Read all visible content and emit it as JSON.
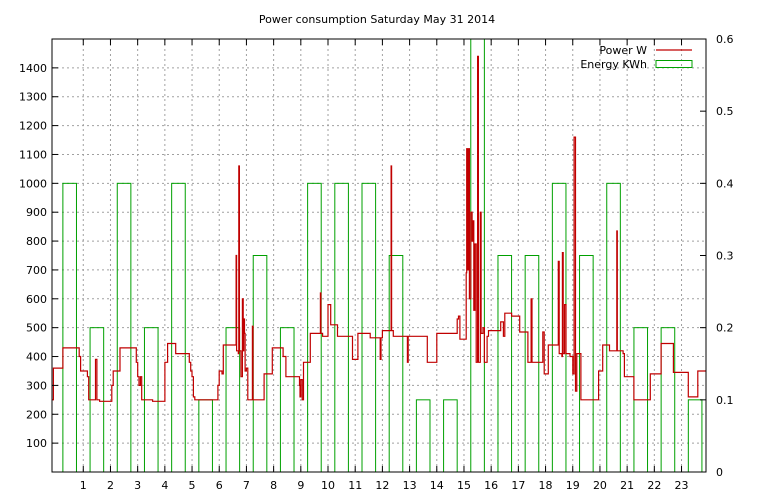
{
  "chart_data": {
    "type": "line",
    "title": "Power consumption Saturday May 31 2014",
    "x": {
      "range": [
        -0.15,
        23.9
      ],
      "ticks": [
        1,
        2,
        3,
        4,
        5,
        6,
        7,
        8,
        9,
        10,
        11,
        12,
        13,
        14,
        15,
        16,
        17,
        18,
        19,
        20,
        21,
        22,
        23
      ],
      "grid": true
    },
    "y_left": {
      "range": [
        0,
        1500
      ],
      "ticks": [
        100,
        200,
        300,
        400,
        500,
        600,
        700,
        800,
        900,
        1000,
        1100,
        1200,
        1300,
        1400
      ],
      "grid": true
    },
    "y_right": {
      "range": [
        0,
        0.6
      ],
      "ticks": [
        0,
        0.1,
        0.2,
        0.3,
        0.4,
        0.5,
        0.6
      ]
    },
    "legend": {
      "placement": "top-right",
      "entries": [
        {
          "name": "Power W",
          "color": "#c00000",
          "style": "line"
        },
        {
          "name": "Energy KWh",
          "color": "#00a000",
          "style": "box"
        }
      ]
    },
    "series": [
      {
        "name": "Energy KWh",
        "axis": "right",
        "kind": "bar",
        "color": "#00a000",
        "x": [
          0,
          1,
          2,
          3,
          4,
          5,
          6,
          7,
          8,
          9,
          10,
          11,
          12,
          13,
          14,
          15,
          16,
          17,
          18,
          19,
          20,
          21,
          22,
          23
        ],
        "values": [
          0.4,
          0.2,
          0.4,
          0.2,
          0.4,
          0.1,
          0.2,
          0.3,
          0.2,
          0.4,
          0.4,
          0.4,
          0.3,
          0.1,
          0.1,
          0.6,
          0.3,
          0.3,
          0.4,
          0.3,
          0.4,
          0.2,
          0.2,
          0.1
        ]
      },
      {
        "name": "Power W",
        "axis": "left",
        "kind": "step",
        "color": "#c00000",
        "points": [
          [
            -0.15,
            250
          ],
          [
            -0.1,
            360
          ],
          [
            0.2,
            360
          ],
          [
            0.25,
            430
          ],
          [
            0.8,
            430
          ],
          [
            0.85,
            400
          ],
          [
            0.9,
            350
          ],
          [
            1.1,
            350
          ],
          [
            1.15,
            330
          ],
          [
            1.2,
            250
          ],
          [
            1.4,
            250
          ],
          [
            1.45,
            390
          ],
          [
            1.5,
            250
          ],
          [
            1.6,
            245
          ],
          [
            2.0,
            245
          ],
          [
            2.05,
            300
          ],
          [
            2.1,
            350
          ],
          [
            2.3,
            350
          ],
          [
            2.35,
            430
          ],
          [
            2.9,
            430
          ],
          [
            2.95,
            380
          ],
          [
            3.0,
            330
          ],
          [
            3.05,
            300
          ],
          [
            3.1,
            330
          ],
          [
            3.15,
            250
          ],
          [
            3.5,
            250
          ],
          [
            3.55,
            245
          ],
          [
            3.95,
            245
          ],
          [
            4.0,
            380
          ],
          [
            4.1,
            445
          ],
          [
            4.35,
            445
          ],
          [
            4.4,
            410
          ],
          [
            4.85,
            410
          ],
          [
            4.9,
            380
          ],
          [
            4.95,
            350
          ],
          [
            5.0,
            330
          ],
          [
            5.05,
            260
          ],
          [
            5.1,
            250
          ],
          [
            5.9,
            250
          ],
          [
            5.95,
            300
          ],
          [
            6.0,
            350
          ],
          [
            6.1,
            340
          ],
          [
            6.15,
            440
          ],
          [
            6.6,
            440
          ],
          [
            6.62,
            750
          ],
          [
            6.64,
            420
          ],
          [
            6.7,
            410
          ],
          [
            6.72,
            1060
          ],
          [
            6.74,
            420
          ],
          [
            6.8,
            330
          ],
          [
            6.85,
            600
          ],
          [
            6.88,
            420
          ],
          [
            6.9,
            530
          ],
          [
            6.93,
            480
          ],
          [
            6.95,
            350
          ],
          [
            7.0,
            360
          ],
          [
            7.05,
            250
          ],
          [
            7.2,
            250
          ],
          [
            7.22,
            505
          ],
          [
            7.24,
            250
          ],
          [
            7.3,
            250
          ],
          [
            7.6,
            250
          ],
          [
            7.65,
            340
          ],
          [
            7.9,
            340
          ],
          [
            7.95,
            430
          ],
          [
            8.3,
            430
          ],
          [
            8.35,
            400
          ],
          [
            8.45,
            330
          ],
          [
            8.9,
            330
          ],
          [
            8.95,
            300
          ],
          [
            8.97,
            260
          ],
          [
            9.0,
            320
          ],
          [
            9.05,
            250
          ],
          [
            9.1,
            380
          ],
          [
            9.3,
            380
          ],
          [
            9.35,
            480
          ],
          [
            9.7,
            480
          ],
          [
            9.72,
            620
          ],
          [
            9.74,
            480
          ],
          [
            9.8,
            470
          ],
          [
            9.95,
            470
          ],
          [
            10.0,
            580
          ],
          [
            10.1,
            510
          ],
          [
            10.3,
            510
          ],
          [
            10.35,
            470
          ],
          [
            10.85,
            470
          ],
          [
            10.9,
            390
          ],
          [
            11.05,
            390
          ],
          [
            11.1,
            480
          ],
          [
            11.5,
            480
          ],
          [
            11.55,
            465
          ],
          [
            11.9,
            465
          ],
          [
            11.92,
            390
          ],
          [
            11.95,
            465
          ],
          [
            12.0,
            490
          ],
          [
            12.3,
            490
          ],
          [
            12.32,
            1060
          ],
          [
            12.34,
            490
          ],
          [
            12.4,
            470
          ],
          [
            12.9,
            470
          ],
          [
            12.92,
            380
          ],
          [
            12.95,
            470
          ],
          [
            13.6,
            470
          ],
          [
            13.65,
            380
          ],
          [
            13.95,
            380
          ],
          [
            14.0,
            480
          ],
          [
            14.7,
            480
          ],
          [
            14.75,
            530
          ],
          [
            14.8,
            540
          ],
          [
            14.85,
            460
          ],
          [
            15.05,
            460
          ],
          [
            15.08,
            690
          ],
          [
            15.1,
            1120
          ],
          [
            15.13,
            700
          ],
          [
            15.16,
            1120
          ],
          [
            15.2,
            600
          ],
          [
            15.25,
            900
          ],
          [
            15.3,
            800
          ],
          [
            15.33,
            870
          ],
          [
            15.36,
            560
          ],
          [
            15.4,
            790
          ],
          [
            15.45,
            380
          ],
          [
            15.5,
            1440
          ],
          [
            15.53,
            380
          ],
          [
            15.6,
            900
          ],
          [
            15.63,
            480
          ],
          [
            15.7,
            500
          ],
          [
            15.75,
            380
          ],
          [
            15.85,
            470
          ],
          [
            15.9,
            490
          ],
          [
            16.3,
            490
          ],
          [
            16.35,
            520
          ],
          [
            16.45,
            470
          ],
          [
            16.5,
            550
          ],
          [
            16.7,
            550
          ],
          [
            16.75,
            540
          ],
          [
            17.0,
            540
          ],
          [
            17.05,
            485
          ],
          [
            17.3,
            485
          ],
          [
            17.35,
            380
          ],
          [
            17.45,
            380
          ],
          [
            17.47,
            600
          ],
          [
            17.5,
            380
          ],
          [
            17.85,
            380
          ],
          [
            17.9,
            485
          ],
          [
            17.95,
            340
          ],
          [
            18.05,
            340
          ],
          [
            18.1,
            440
          ],
          [
            18.45,
            440
          ],
          [
            18.47,
            730
          ],
          [
            18.5,
            410
          ],
          [
            18.6,
            400
          ],
          [
            18.62,
            760
          ],
          [
            18.65,
            410
          ],
          [
            18.7,
            580
          ],
          [
            18.75,
            410
          ],
          [
            18.9,
            400
          ],
          [
            19.0,
            340
          ],
          [
            19.05,
            1160
          ],
          [
            19.1,
            280
          ],
          [
            19.15,
            410
          ],
          [
            19.3,
            250
          ],
          [
            19.9,
            250
          ],
          [
            19.95,
            350
          ],
          [
            20.1,
            440
          ],
          [
            20.3,
            440
          ],
          [
            20.35,
            420
          ],
          [
            20.6,
            420
          ],
          [
            20.62,
            835
          ],
          [
            20.64,
            420
          ],
          [
            20.85,
            410
          ],
          [
            20.9,
            330
          ],
          [
            21.2,
            330
          ],
          [
            21.25,
            250
          ],
          [
            21.8,
            250
          ],
          [
            21.85,
            340
          ],
          [
            22.2,
            340
          ],
          [
            22.25,
            445
          ],
          [
            22.65,
            445
          ],
          [
            22.7,
            345
          ],
          [
            23.2,
            345
          ],
          [
            23.25,
            260
          ],
          [
            23.55,
            260
          ],
          [
            23.6,
            350
          ],
          [
            23.9,
            350
          ]
        ]
      }
    ]
  }
}
